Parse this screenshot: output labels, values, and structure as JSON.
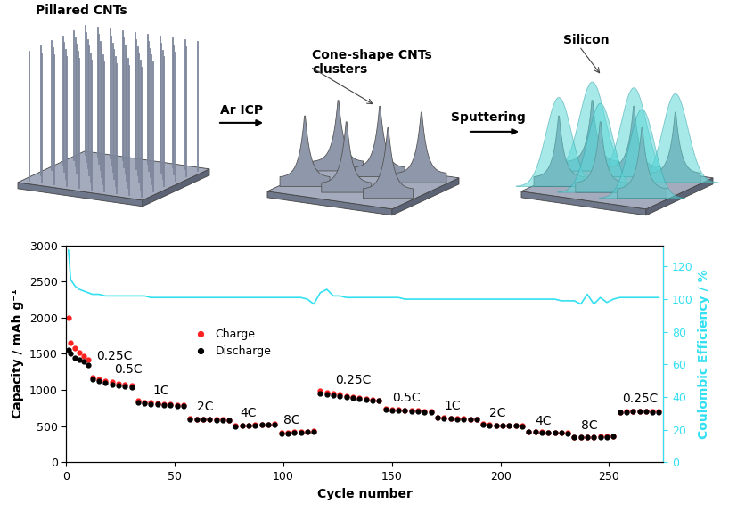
{
  "diagram": {
    "panels": [
      {
        "label": "Pillared CNTs"
      },
      {
        "label": "Cone-shape CNTs\nclusters"
      },
      {
        "label": "Silicon"
      }
    ],
    "steps": [
      "Ar ICP",
      "Sputtering"
    ]
  },
  "chart_data": {
    "type": "line",
    "xlabel": "Cycle number",
    "ylabel": "Capacity / mAh g⁻¹",
    "y2label": "Coulombic Efficiency / %",
    "xlim": [
      0,
      275
    ],
    "xticks": [
      0,
      50,
      100,
      150,
      200,
      250
    ],
    "ylim": [
      0,
      3000
    ],
    "yticks": [
      0,
      500,
      1000,
      1500,
      2000,
      2500,
      3000
    ],
    "y2lim": [
      0,
      133
    ],
    "y2ticks": [
      0,
      20,
      40,
      60,
      80,
      100,
      120
    ],
    "legend": "center left",
    "x": [
      1,
      2,
      4,
      6,
      8,
      10,
      12,
      15,
      18,
      21,
      24,
      27,
      30,
      33,
      36,
      39,
      42,
      45,
      48,
      51,
      54,
      57,
      60,
      63,
      66,
      69,
      72,
      75,
      78,
      81,
      84,
      87,
      90,
      93,
      96,
      99,
      102,
      105,
      108,
      111,
      114,
      117,
      120,
      123,
      126,
      129,
      132,
      135,
      138,
      141,
      144,
      147,
      150,
      153,
      156,
      159,
      162,
      165,
      168,
      171,
      174,
      177,
      180,
      183,
      186,
      189,
      192,
      195,
      198,
      201,
      204,
      207,
      210,
      213,
      216,
      219,
      222,
      225,
      228,
      231,
      234,
      237,
      240,
      243,
      246,
      249,
      252,
      255,
      258,
      261,
      264,
      267,
      270,
      273
    ],
    "series": [
      {
        "name": "Charge",
        "color": "#ff2020",
        "marker": "o",
        "line_style": "none",
        "values": [
          2000,
          1650,
          1580,
          1520,
          1470,
          1420,
          1180,
          1150,
          1130,
          1110,
          1090,
          1070,
          1060,
          850,
          835,
          825,
          815,
          805,
          800,
          795,
          790,
          610,
          600,
          595,
          595,
          590,
          590,
          585,
          505,
          510,
          515,
          520,
          525,
          525,
          530,
          410,
          415,
          420,
          425,
          430,
          435,
          990,
          965,
          950,
          935,
          920,
          905,
          895,
          885,
          870,
          860,
          745,
          735,
          730,
          725,
          720,
          715,
          710,
          705,
          625,
          615,
          610,
          605,
          605,
          600,
          595,
          530,
          520,
          515,
          515,
          510,
          510,
          505,
          428,
          422,
          418,
          416,
          414,
          412,
          410,
          350,
          350,
          352,
          355,
          357,
          360,
          362,
          700,
          710,
          712,
          710,
          710,
          708,
          705
        ]
      },
      {
        "name": "Discharge",
        "color": "#000000",
        "marker": "o",
        "line_style": "none",
        "values": [
          1550,
          1500,
          1450,
          1420,
          1390,
          1350,
          1150,
          1120,
          1100,
          1080,
          1060,
          1050,
          1040,
          830,
          820,
          810,
          800,
          795,
          790,
          785,
          780,
          600,
          595,
          590,
          590,
          585,
          585,
          580,
          500,
          505,
          510,
          515,
          520,
          520,
          525,
          400,
          405,
          410,
          415,
          420,
          425,
          950,
          940,
          930,
          915,
          900,
          890,
          880,
          870,
          860,
          850,
          730,
          725,
          720,
          715,
          710,
          705,
          700,
          700,
          615,
          610,
          605,
          600,
          600,
          595,
          590,
          520,
          515,
          510,
          510,
          505,
          505,
          500,
          420,
          418,
          415,
          412,
          410,
          408,
          405,
          345,
          345,
          348,
          350,
          352,
          355,
          358,
          690,
          700,
          705,
          705,
          705,
          700,
          700
        ]
      },
      {
        "color": "#33e0f0",
        "marker": "none",
        "line_style": "solid",
        "axis": "y2",
        "values": [
          130,
          112,
          108,
          106,
          105,
          104,
          103,
          103,
          102,
          102,
          102,
          102,
          102,
          102,
          102,
          101,
          101,
          101,
          101,
          101,
          101,
          101,
          101,
          101,
          101,
          101,
          101,
          101,
          101,
          101,
          101,
          101,
          101,
          101,
          101,
          101,
          101,
          101,
          101,
          100,
          97,
          104,
          106,
          102,
          102,
          101,
          101,
          101,
          101,
          101,
          101,
          101,
          101,
          101,
          100,
          100,
          100,
          100,
          100,
          100,
          100,
          100,
          100,
          100,
          100,
          100,
          100,
          100,
          100,
          100,
          100,
          100,
          100,
          100,
          100,
          100,
          100,
          100,
          99,
          99,
          99,
          97,
          103,
          97,
          101,
          98,
          100,
          101,
          101,
          101,
          101,
          101,
          101,
          101
        ]
      }
    ],
    "annotations": [
      {
        "text": "0.25C",
        "x": 14,
        "y": 1380
      },
      {
        "text": "0.5C",
        "x": 22,
        "y": 1200
      },
      {
        "text": "1C",
        "x": 40,
        "y": 900
      },
      {
        "text": "2C",
        "x": 60,
        "y": 680
      },
      {
        "text": "4C",
        "x": 80,
        "y": 600
      },
      {
        "text": "8C",
        "x": 100,
        "y": 500
      },
      {
        "text": "0.25C",
        "x": 124,
        "y": 1050
      },
      {
        "text": "0.5C",
        "x": 150,
        "y": 810
      },
      {
        "text": "1C",
        "x": 174,
        "y": 700
      },
      {
        "text": "2C",
        "x": 195,
        "y": 600
      },
      {
        "text": "4C",
        "x": 216,
        "y": 490
      },
      {
        "text": "8C",
        "x": 237,
        "y": 430
      },
      {
        "text": "0.25C",
        "x": 256,
        "y": 790
      }
    ]
  }
}
